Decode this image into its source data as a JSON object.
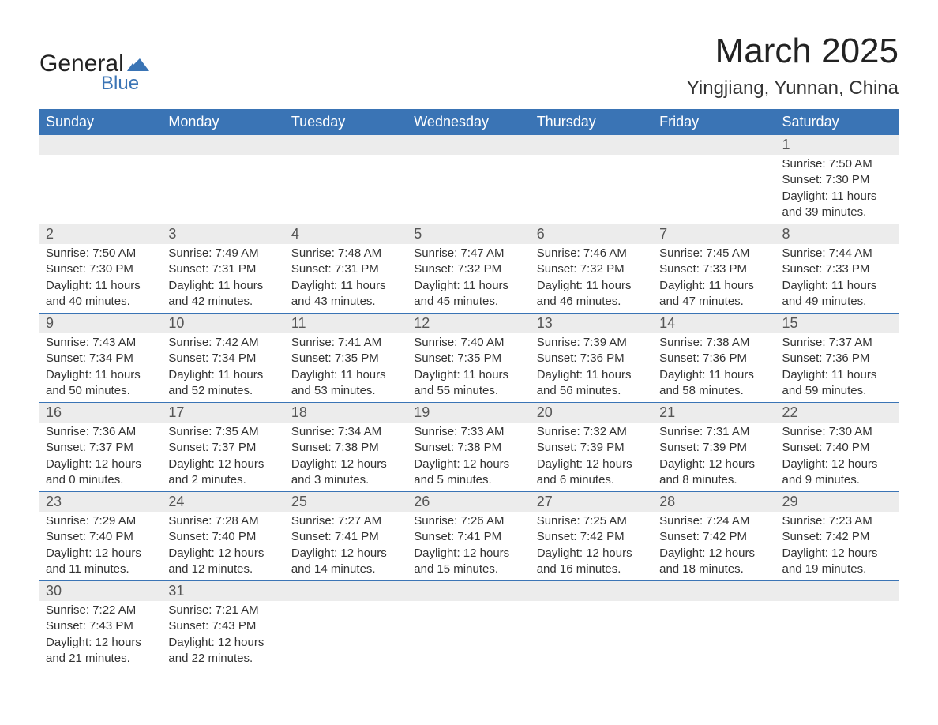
{
  "logo": {
    "text1": "General",
    "text2": "Blue",
    "flag_color": "#3a74b5",
    "text1_color": "#222222"
  },
  "header": {
    "month_title": "March 2025",
    "location": "Yingjiang, Yunnan, China"
  },
  "calendar": {
    "header_bg": "#3a74b5",
    "header_fg": "#ffffff",
    "daynum_bg": "#ececec",
    "rule_color": "#3a74b5",
    "text_color": "#333333",
    "daynames": [
      "Sunday",
      "Monday",
      "Tuesday",
      "Wednesday",
      "Thursday",
      "Friday",
      "Saturday"
    ],
    "weeks": [
      [
        {
          "day": null
        },
        {
          "day": null
        },
        {
          "day": null
        },
        {
          "day": null
        },
        {
          "day": null
        },
        {
          "day": null
        },
        {
          "day": "1",
          "sunrise": "Sunrise: 7:50 AM",
          "sunset": "Sunset: 7:30 PM",
          "daylight1": "Daylight: 11 hours",
          "daylight2": "and 39 minutes."
        }
      ],
      [
        {
          "day": "2",
          "sunrise": "Sunrise: 7:50 AM",
          "sunset": "Sunset: 7:30 PM",
          "daylight1": "Daylight: 11 hours",
          "daylight2": "and 40 minutes."
        },
        {
          "day": "3",
          "sunrise": "Sunrise: 7:49 AM",
          "sunset": "Sunset: 7:31 PM",
          "daylight1": "Daylight: 11 hours",
          "daylight2": "and 42 minutes."
        },
        {
          "day": "4",
          "sunrise": "Sunrise: 7:48 AM",
          "sunset": "Sunset: 7:31 PM",
          "daylight1": "Daylight: 11 hours",
          "daylight2": "and 43 minutes."
        },
        {
          "day": "5",
          "sunrise": "Sunrise: 7:47 AM",
          "sunset": "Sunset: 7:32 PM",
          "daylight1": "Daylight: 11 hours",
          "daylight2": "and 45 minutes."
        },
        {
          "day": "6",
          "sunrise": "Sunrise: 7:46 AM",
          "sunset": "Sunset: 7:32 PM",
          "daylight1": "Daylight: 11 hours",
          "daylight2": "and 46 minutes."
        },
        {
          "day": "7",
          "sunrise": "Sunrise: 7:45 AM",
          "sunset": "Sunset: 7:33 PM",
          "daylight1": "Daylight: 11 hours",
          "daylight2": "and 47 minutes."
        },
        {
          "day": "8",
          "sunrise": "Sunrise: 7:44 AM",
          "sunset": "Sunset: 7:33 PM",
          "daylight1": "Daylight: 11 hours",
          "daylight2": "and 49 minutes."
        }
      ],
      [
        {
          "day": "9",
          "sunrise": "Sunrise: 7:43 AM",
          "sunset": "Sunset: 7:34 PM",
          "daylight1": "Daylight: 11 hours",
          "daylight2": "and 50 minutes."
        },
        {
          "day": "10",
          "sunrise": "Sunrise: 7:42 AM",
          "sunset": "Sunset: 7:34 PM",
          "daylight1": "Daylight: 11 hours",
          "daylight2": "and 52 minutes."
        },
        {
          "day": "11",
          "sunrise": "Sunrise: 7:41 AM",
          "sunset": "Sunset: 7:35 PM",
          "daylight1": "Daylight: 11 hours",
          "daylight2": "and 53 minutes."
        },
        {
          "day": "12",
          "sunrise": "Sunrise: 7:40 AM",
          "sunset": "Sunset: 7:35 PM",
          "daylight1": "Daylight: 11 hours",
          "daylight2": "and 55 minutes."
        },
        {
          "day": "13",
          "sunrise": "Sunrise: 7:39 AM",
          "sunset": "Sunset: 7:36 PM",
          "daylight1": "Daylight: 11 hours",
          "daylight2": "and 56 minutes."
        },
        {
          "day": "14",
          "sunrise": "Sunrise: 7:38 AM",
          "sunset": "Sunset: 7:36 PM",
          "daylight1": "Daylight: 11 hours",
          "daylight2": "and 58 minutes."
        },
        {
          "day": "15",
          "sunrise": "Sunrise: 7:37 AM",
          "sunset": "Sunset: 7:36 PM",
          "daylight1": "Daylight: 11 hours",
          "daylight2": "and 59 minutes."
        }
      ],
      [
        {
          "day": "16",
          "sunrise": "Sunrise: 7:36 AM",
          "sunset": "Sunset: 7:37 PM",
          "daylight1": "Daylight: 12 hours",
          "daylight2": "and 0 minutes."
        },
        {
          "day": "17",
          "sunrise": "Sunrise: 7:35 AM",
          "sunset": "Sunset: 7:37 PM",
          "daylight1": "Daylight: 12 hours",
          "daylight2": "and 2 minutes."
        },
        {
          "day": "18",
          "sunrise": "Sunrise: 7:34 AM",
          "sunset": "Sunset: 7:38 PM",
          "daylight1": "Daylight: 12 hours",
          "daylight2": "and 3 minutes."
        },
        {
          "day": "19",
          "sunrise": "Sunrise: 7:33 AM",
          "sunset": "Sunset: 7:38 PM",
          "daylight1": "Daylight: 12 hours",
          "daylight2": "and 5 minutes."
        },
        {
          "day": "20",
          "sunrise": "Sunrise: 7:32 AM",
          "sunset": "Sunset: 7:39 PM",
          "daylight1": "Daylight: 12 hours",
          "daylight2": "and 6 minutes."
        },
        {
          "day": "21",
          "sunrise": "Sunrise: 7:31 AM",
          "sunset": "Sunset: 7:39 PM",
          "daylight1": "Daylight: 12 hours",
          "daylight2": "and 8 minutes."
        },
        {
          "day": "22",
          "sunrise": "Sunrise: 7:30 AM",
          "sunset": "Sunset: 7:40 PM",
          "daylight1": "Daylight: 12 hours",
          "daylight2": "and 9 minutes."
        }
      ],
      [
        {
          "day": "23",
          "sunrise": "Sunrise: 7:29 AM",
          "sunset": "Sunset: 7:40 PM",
          "daylight1": "Daylight: 12 hours",
          "daylight2": "and 11 minutes."
        },
        {
          "day": "24",
          "sunrise": "Sunrise: 7:28 AM",
          "sunset": "Sunset: 7:40 PM",
          "daylight1": "Daylight: 12 hours",
          "daylight2": "and 12 minutes."
        },
        {
          "day": "25",
          "sunrise": "Sunrise: 7:27 AM",
          "sunset": "Sunset: 7:41 PM",
          "daylight1": "Daylight: 12 hours",
          "daylight2": "and 14 minutes."
        },
        {
          "day": "26",
          "sunrise": "Sunrise: 7:26 AM",
          "sunset": "Sunset: 7:41 PM",
          "daylight1": "Daylight: 12 hours",
          "daylight2": "and 15 minutes."
        },
        {
          "day": "27",
          "sunrise": "Sunrise: 7:25 AM",
          "sunset": "Sunset: 7:42 PM",
          "daylight1": "Daylight: 12 hours",
          "daylight2": "and 16 minutes."
        },
        {
          "day": "28",
          "sunrise": "Sunrise: 7:24 AM",
          "sunset": "Sunset: 7:42 PM",
          "daylight1": "Daylight: 12 hours",
          "daylight2": "and 18 minutes."
        },
        {
          "day": "29",
          "sunrise": "Sunrise: 7:23 AM",
          "sunset": "Sunset: 7:42 PM",
          "daylight1": "Daylight: 12 hours",
          "daylight2": "and 19 minutes."
        }
      ],
      [
        {
          "day": "30",
          "sunrise": "Sunrise: 7:22 AM",
          "sunset": "Sunset: 7:43 PM",
          "daylight1": "Daylight: 12 hours",
          "daylight2": "and 21 minutes."
        },
        {
          "day": "31",
          "sunrise": "Sunrise: 7:21 AM",
          "sunset": "Sunset: 7:43 PM",
          "daylight1": "Daylight: 12 hours",
          "daylight2": "and 22 minutes."
        },
        {
          "day": null
        },
        {
          "day": null
        },
        {
          "day": null
        },
        {
          "day": null
        },
        {
          "day": null
        }
      ]
    ]
  }
}
